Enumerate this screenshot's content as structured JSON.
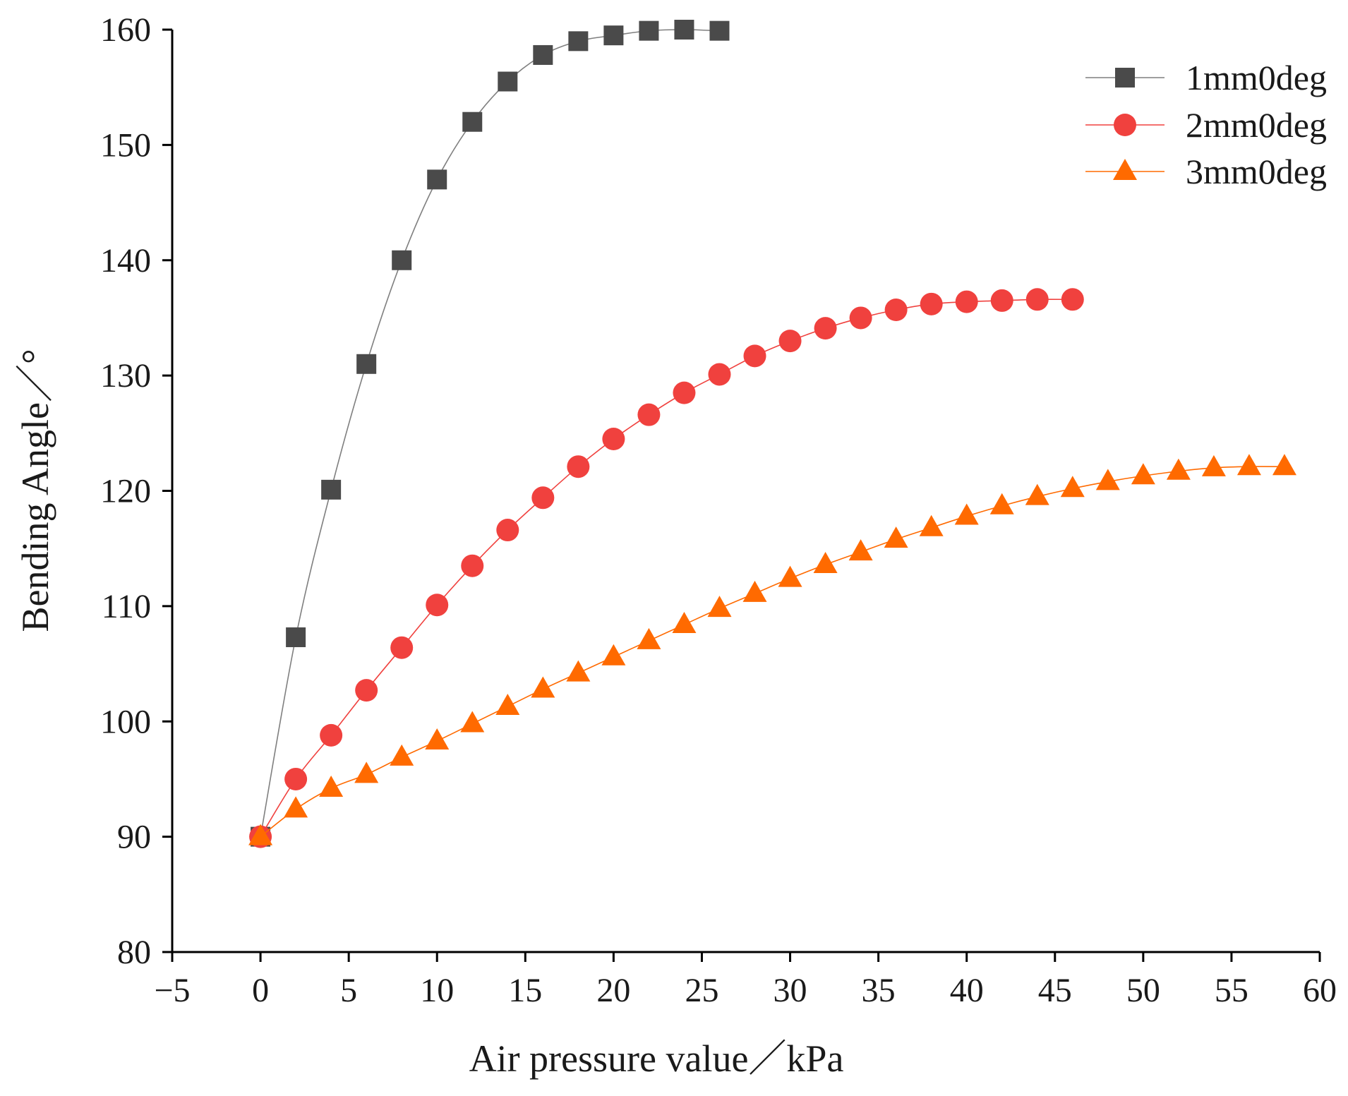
{
  "chart_data": {
    "type": "line",
    "title": "",
    "xlabel": "Air pressure value／kPa",
    "ylabel": "Bending Angle／°",
    "xlim": [
      -5,
      60
    ],
    "ylim": [
      80,
      160
    ],
    "xticks": [
      "−5",
      "0",
      "5",
      "10",
      "15",
      "20",
      "25",
      "30",
      "35",
      "40",
      "45",
      "50",
      "55",
      "60"
    ],
    "xtick_values": [
      -5,
      0,
      5,
      10,
      15,
      20,
      25,
      30,
      35,
      40,
      45,
      50,
      55,
      60
    ],
    "yticks": [
      "80",
      "90",
      "100",
      "110",
      "120",
      "130",
      "140",
      "150",
      "160"
    ],
    "ytick_values": [
      80,
      90,
      100,
      110,
      120,
      130,
      140,
      150,
      160
    ],
    "grid": false,
    "legend_position": "top-right",
    "series": [
      {
        "name": "1mm0deg",
        "color": "#4a4a4a",
        "line_color": "#7f7f7f",
        "marker": "square",
        "x": [
          0,
          2,
          4,
          6,
          8,
          10,
          12,
          14,
          16,
          18,
          20,
          22,
          24,
          26
        ],
        "y": [
          90,
          107.3,
          120.1,
          131,
          140,
          147,
          152,
          155.5,
          157.8,
          159,
          159.5,
          159.9,
          160,
          159.9
        ]
      },
      {
        "name": "2mm0deg",
        "color": "#f0413e",
        "line_color": "#f0413e",
        "marker": "circle",
        "x": [
          0,
          2,
          4,
          6,
          8,
          10,
          12,
          14,
          16,
          18,
          20,
          22,
          24,
          26,
          28,
          30,
          32,
          34,
          36,
          38,
          40,
          42,
          44,
          46
        ],
        "y": [
          90,
          95,
          98.8,
          102.7,
          106.4,
          110.1,
          113.5,
          116.6,
          119.4,
          122.1,
          124.5,
          126.6,
          128.5,
          130.1,
          131.7,
          133,
          134.1,
          135,
          135.7,
          136.2,
          136.4,
          136.5,
          136.6,
          136.6
        ]
      },
      {
        "name": "3mm0deg",
        "color": "#ff6a00",
        "line_color": "#ff6a00",
        "marker": "triangle",
        "x": [
          0,
          2,
          4,
          6,
          8,
          10,
          12,
          14,
          16,
          18,
          20,
          22,
          24,
          26,
          28,
          30,
          32,
          34,
          36,
          38,
          40,
          42,
          44,
          46,
          48,
          50,
          52,
          54,
          56,
          58
        ],
        "y": [
          90,
          92.4,
          94.2,
          95.4,
          96.9,
          98.3,
          99.8,
          101.3,
          102.8,
          104.2,
          105.6,
          107,
          108.4,
          109.8,
          111.1,
          112.4,
          113.6,
          114.7,
          115.8,
          116.8,
          117.8,
          118.7,
          119.5,
          120.2,
          120.8,
          121.3,
          121.7,
          122,
          122.1,
          122.1
        ]
      }
    ]
  }
}
